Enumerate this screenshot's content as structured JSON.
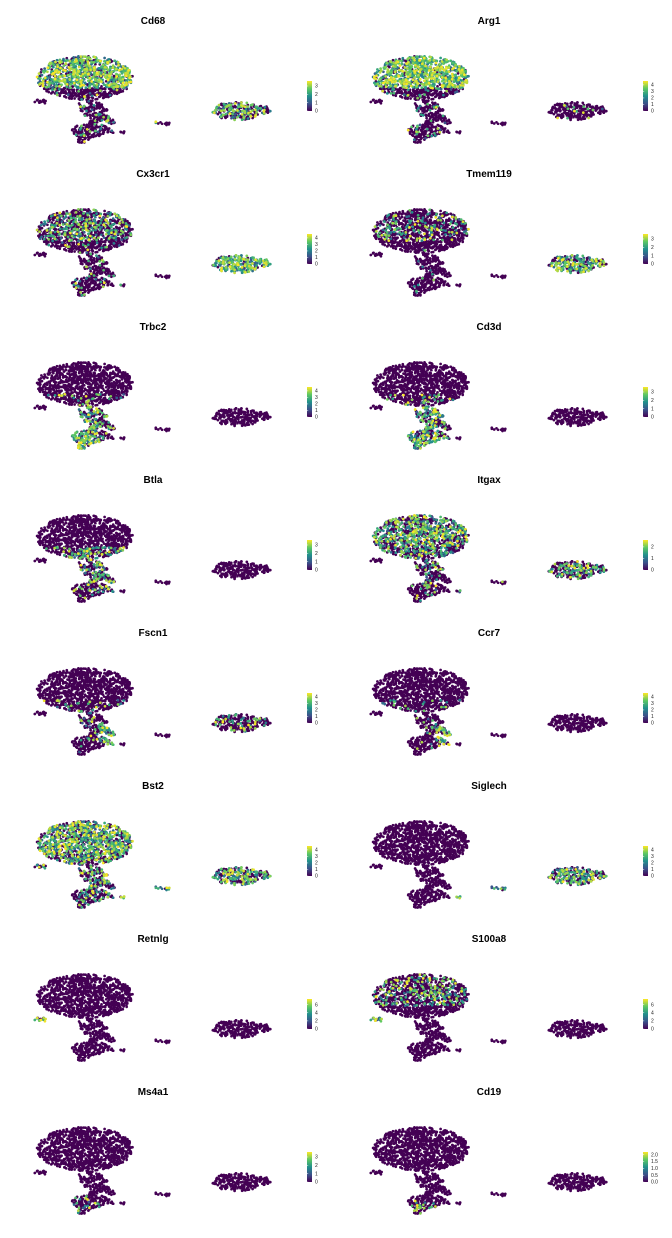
{
  "colors": {
    "background": "#ffffff",
    "low": "#440154",
    "mid": "#21908c",
    "high": "#fde725",
    "scale": [
      "#440154",
      "#3b528b",
      "#21908c",
      "#5dc863",
      "#fde725"
    ]
  },
  "chart_data": [
    {
      "type": "scatter",
      "title": "Cd68",
      "legend": "right",
      "grid": false,
      "colorbar": {
        "ticks": [
          "0",
          "1",
          "2",
          "3"
        ],
        "max": 3.6
      },
      "expression": {
        "cap": 0.75,
        "mid": 0.05,
        "tail": 0.15,
        "left": 0.0,
        "right": 0.45,
        "small": 0.05,
        "stem": 0.1,
        "lower": 0.1
      }
    },
    {
      "type": "scatter",
      "title": "Arg1",
      "legend": "right",
      "grid": false,
      "colorbar": {
        "ticks": [
          "0",
          "1",
          "2",
          "3",
          "4"
        ],
        "max": 4.6
      },
      "expression": {
        "cap": 0.85,
        "mid": 0.05,
        "tail": 0.1,
        "left": 0.0,
        "right": 0.05,
        "small": 0.05,
        "stem": 0.1,
        "lower": 0.1
      }
    },
    {
      "type": "scatter",
      "title": "Cx3cr1",
      "legend": "right",
      "grid": false,
      "colorbar": {
        "ticks": [
          "0",
          "1",
          "2",
          "3",
          "4"
        ],
        "max": 4.6
      },
      "expression": {
        "cap": 0.3,
        "mid": 0.05,
        "tail": 0.1,
        "left": 0.0,
        "right": 0.85,
        "small": 0.1,
        "stem": 0.1,
        "lower": 0.1
      }
    },
    {
      "type": "scatter",
      "title": "Tmem119",
      "legend": "right",
      "grid": false,
      "colorbar": {
        "ticks": [
          "0",
          "1",
          "2",
          "3"
        ],
        "max": 3.6
      },
      "expression": {
        "cap": 0.15,
        "mid": 0.0,
        "tail": 0.0,
        "left": 0.0,
        "right": 0.6,
        "small": 0.0,
        "stem": 0.05,
        "lower": 0.05
      }
    },
    {
      "type": "scatter",
      "title": "Trbc2",
      "legend": "right",
      "grid": false,
      "colorbar": {
        "ticks": [
          "0",
          "1",
          "2",
          "3",
          "4"
        ],
        "max": 4.6
      },
      "expression": {
        "cap": 0.0,
        "mid": 0.1,
        "tail": 0.2,
        "left": 0.0,
        "right": 0.0,
        "small": 0.0,
        "stem": 0.5,
        "lower": 0.8
      }
    },
    {
      "type": "scatter",
      "title": "Cd3d",
      "legend": "right",
      "grid": false,
      "colorbar": {
        "ticks": [
          "0",
          "1",
          "2",
          "3"
        ],
        "max": 3.6
      },
      "expression": {
        "cap": 0.0,
        "mid": 0.1,
        "tail": 0.2,
        "left": 0.0,
        "right": 0.0,
        "small": 0.0,
        "stem": 0.5,
        "lower": 0.75
      }
    },
    {
      "type": "scatter",
      "title": "Btla",
      "legend": "right",
      "grid": false,
      "colorbar": {
        "ticks": [
          "0",
          "1",
          "2",
          "3"
        ],
        "max": 3.6
      },
      "expression": {
        "cap": 0.0,
        "mid": 0.3,
        "tail": 0.4,
        "left": 0.0,
        "right": 0.0,
        "small": 0.0,
        "stem": 0.3,
        "lower": 0.15
      }
    },
    {
      "type": "scatter",
      "title": "Itgax",
      "legend": "right",
      "grid": false,
      "colorbar": {
        "ticks": [
          "0",
          "1",
          "2"
        ],
        "max": 2.6
      },
      "expression": {
        "cap": 0.45,
        "mid": 0.3,
        "tail": 0.1,
        "left": 0.0,
        "right": 0.35,
        "small": 0.1,
        "stem": 0.2,
        "lower": 0.1
      }
    },
    {
      "type": "scatter",
      "title": "Fscn1",
      "legend": "right",
      "grid": false,
      "colorbar": {
        "ticks": [
          "0",
          "1",
          "2",
          "3",
          "4"
        ],
        "max": 4.6
      },
      "expression": {
        "cap": 0.0,
        "mid": 0.1,
        "tail": 0.8,
        "left": 0.0,
        "right": 0.15,
        "small": 0.0,
        "stem": 0.1,
        "lower": 0.05
      }
    },
    {
      "type": "scatter",
      "title": "Ccr7",
      "legend": "right",
      "grid": false,
      "colorbar": {
        "ticks": [
          "0",
          "1",
          "2",
          "3",
          "4"
        ],
        "max": 4.6
      },
      "expression": {
        "cap": 0.0,
        "mid": 0.05,
        "tail": 0.8,
        "left": 0.0,
        "right": 0.0,
        "small": 0.0,
        "stem": 0.05,
        "lower": 0.05
      }
    },
    {
      "type": "scatter",
      "title": "Bst2",
      "legend": "right",
      "grid": false,
      "colorbar": {
        "ticks": [
          "0",
          "1",
          "2",
          "3",
          "4"
        ],
        "max": 4.6
      },
      "expression": {
        "cap": 0.6,
        "mid": 0.4,
        "tail": 0.3,
        "left": 0.4,
        "right": 0.5,
        "small": 0.9,
        "stem": 0.3,
        "lower": 0.2
      }
    },
    {
      "type": "scatter",
      "title": "Siglech",
      "legend": "right",
      "grid": false,
      "colorbar": {
        "ticks": [
          "0",
          "1",
          "2",
          "3",
          "4"
        ],
        "max": 4.6
      },
      "expression": {
        "cap": 0.0,
        "mid": 0.0,
        "tail": 0.0,
        "left": 0.0,
        "right": 0.55,
        "small": 0.8,
        "stem": 0.0,
        "lower": 0.0
      }
    },
    {
      "type": "scatter",
      "title": "Retnlg",
      "legend": "right",
      "grid": false,
      "colorbar": {
        "ticks": [
          "0",
          "2",
          "4",
          "6"
        ],
        "max": 7.4
      },
      "expression": {
        "cap": 0.0,
        "mid": 0.0,
        "tail": 0.0,
        "left": 0.8,
        "right": 0.0,
        "small": 0.0,
        "stem": 0.0,
        "lower": 0.0
      }
    },
    {
      "type": "scatter",
      "title": "S100a8",
      "legend": "right",
      "grid": false,
      "colorbar": {
        "ticks": [
          "0",
          "2",
          "4",
          "6"
        ],
        "max": 7.4
      },
      "expression": {
        "cap": 0.25,
        "mid": 0.0,
        "tail": 0.0,
        "left": 0.9,
        "right": 0.0,
        "small": 0.0,
        "stem": 0.0,
        "lower": 0.0
      }
    },
    {
      "type": "scatter",
      "title": "Ms4a1",
      "legend": "right",
      "grid": false,
      "colorbar": {
        "ticks": [
          "0",
          "1",
          "2",
          "3"
        ],
        "max": 3.6
      },
      "expression": {
        "cap": 0.0,
        "mid": 0.0,
        "tail": 0.0,
        "left": 0.0,
        "right": 0.0,
        "small": 0.0,
        "stem": 0.0,
        "lower": 0.15
      }
    },
    {
      "type": "scatter",
      "title": "Cd19",
      "legend": "right",
      "grid": false,
      "colorbar": {
        "ticks": [
          "0.0",
          "0.5",
          "1.0",
          "1.5",
          "2.0"
        ],
        "max": 2.2
      },
      "expression": {
        "cap": 0.0,
        "mid": 0.0,
        "tail": 0.0,
        "left": 0.0,
        "right": 0.0,
        "small": 0.0,
        "stem": 0.0,
        "lower": 0.15
      }
    }
  ]
}
